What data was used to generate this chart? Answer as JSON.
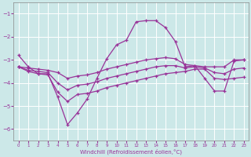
{
  "xlabel": "Windchill (Refroidissement éolien,°C)",
  "x": [
    0,
    1,
    2,
    3,
    4,
    5,
    6,
    7,
    8,
    9,
    10,
    11,
    12,
    13,
    14,
    15,
    16,
    17,
    18,
    19,
    20,
    21,
    22,
    23
  ],
  "line_main": [
    -2.8,
    -3.3,
    -3.6,
    -3.6,
    -4.6,
    -5.8,
    -5.3,
    -4.7,
    -3.8,
    -2.95,
    -2.35,
    -2.15,
    -1.35,
    -1.3,
    -1.3,
    -1.6,
    -2.2,
    -3.3,
    -3.25,
    -3.8,
    -4.35,
    -4.35,
    -3.05,
    -3.0
  ],
  "line_upper": [
    -3.3,
    -3.35,
    -3.4,
    -3.45,
    -3.55,
    -3.8,
    -3.7,
    -3.65,
    -3.55,
    -3.4,
    -3.3,
    -3.2,
    -3.1,
    -3.0,
    -2.95,
    -2.9,
    -2.95,
    -3.2,
    -3.25,
    -3.3,
    -3.3,
    -3.3,
    -3.0,
    -3.0
  ],
  "line_lower": [
    -3.3,
    -3.5,
    -3.6,
    -3.65,
    -4.4,
    -4.8,
    -4.5,
    -4.45,
    -4.35,
    -4.2,
    -4.1,
    -4.0,
    -3.9,
    -3.8,
    -3.7,
    -3.6,
    -3.55,
    -3.5,
    -3.4,
    -3.4,
    -3.8,
    -3.85,
    -3.8,
    -3.75
  ],
  "line_avg": [
    -3.3,
    -3.45,
    -3.5,
    -3.55,
    -4.0,
    -4.3,
    -4.1,
    -4.05,
    -3.95,
    -3.8,
    -3.7,
    -3.6,
    -3.5,
    -3.4,
    -3.3,
    -3.25,
    -3.25,
    -3.35,
    -3.3,
    -3.35,
    -3.55,
    -3.6,
    -3.4,
    -3.35
  ],
  "color": "#993399",
  "bg_color": "#cce8e8",
  "grid_color": "#aacccc",
  "ylim": [
    -6.5,
    -0.5
  ],
  "yticks": [
    -6,
    -5,
    -4,
    -3,
    -2,
    -1
  ],
  "xticks": [
    0,
    1,
    2,
    3,
    4,
    5,
    6,
    7,
    8,
    9,
    10,
    11,
    12,
    13,
    14,
    15,
    16,
    17,
    18,
    19,
    20,
    21,
    22,
    23
  ]
}
